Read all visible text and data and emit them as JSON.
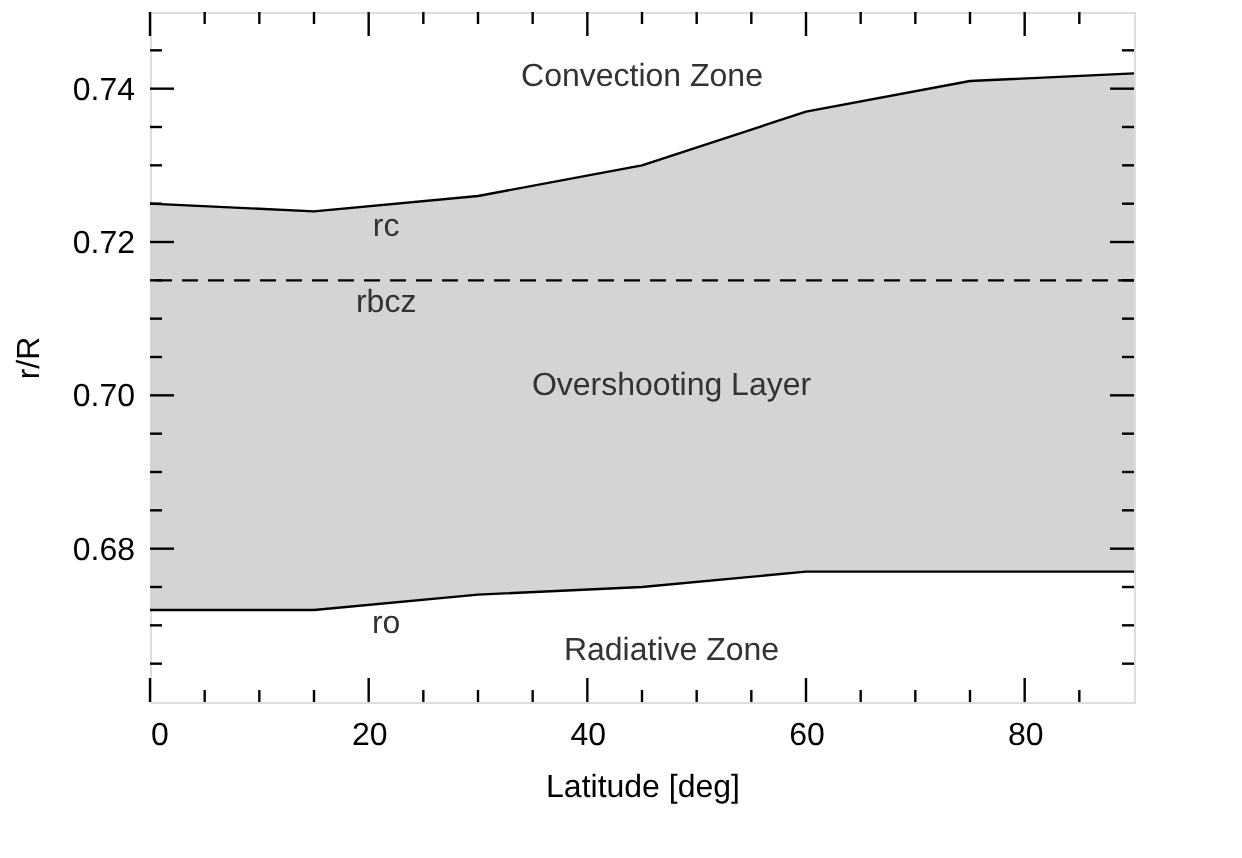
{
  "chart_data": {
    "type": "line",
    "xlabel": "Latitude [deg]",
    "ylabel": "r/R",
    "x": [
      0,
      15,
      30,
      45,
      60,
      75,
      90
    ],
    "series": [
      {
        "color": "#000000",
        "values": [
          0.725,
          0.724,
          0.726,
          0.73,
          0.737,
          0.741,
          0.742
        ],
        "lower": [
          0.672,
          0.672,
          0.674,
          0.675,
          0.677,
          0.677,
          0.677
        ],
        "upper": [
          0.725,
          0.724,
          0.726,
          0.73,
          0.737,
          0.741,
          0.742
        ]
      },
      {
        "color": "#000000",
        "values": [
          0.672,
          0.672,
          0.674,
          0.675,
          0.677,
          0.677,
          0.677
        ]
      }
    ],
    "ref_lines": [
      {
        "axis": "y",
        "value": 0.715,
        "color": "#000000",
        "line_style": "dashed"
      }
    ],
    "annotations": [
      "Convection Zone",
      "rc",
      "rbcz",
      "Overshooting Layer",
      "ro",
      "Radiative Zone"
    ],
    "xlim": [
      0,
      90
    ],
    "ylim": [
      0.66,
      0.75
    ],
    "xticks": [
      0,
      {
        "value": 5,
        "label": null
      },
      {
        "value": 10,
        "label": null
      },
      {
        "value": 15,
        "label": null
      },
      20,
      {
        "value": 25,
        "label": null
      },
      {
        "value": 30,
        "label": null
      },
      {
        "value": 35,
        "label": null
      },
      40,
      {
        "value": 45,
        "label": null
      },
      {
        "value": 50,
        "label": null
      },
      {
        "value": 55,
        "label": null
      },
      60,
      {
        "value": 65,
        "label": null
      },
      {
        "value": 70,
        "label": null
      },
      {
        "value": 75,
        "label": null
      },
      80,
      {
        "value": 85,
        "label": null
      }
    ],
    "yticks": [
      {
        "value": 0.665,
        "label": null
      },
      0.68,
      {
        "value": 0.675,
        "label": null
      },
      {
        "value": 0.67,
        "label": null
      },
      {
        "value": 0.685,
        "label": null
      },
      {
        "value": 0.69,
        "label": null
      },
      {
        "value": 0.695,
        "label": null
      },
      {
        "value": 0.7,
        "label": "0.70"
      },
      {
        "value": 0.705,
        "label": null
      },
      {
        "value": 0.71,
        "label": null
      },
      {
        "value": 0.715,
        "label": null
      },
      0.72,
      {
        "value": 0.725,
        "label": null
      },
      {
        "value": 0.73,
        "label": null
      },
      {
        "value": 0.735,
        "label": null
      },
      0.74,
      {
        "value": 0.745,
        "label": null
      }
    ],
    "grid": false
  }
}
